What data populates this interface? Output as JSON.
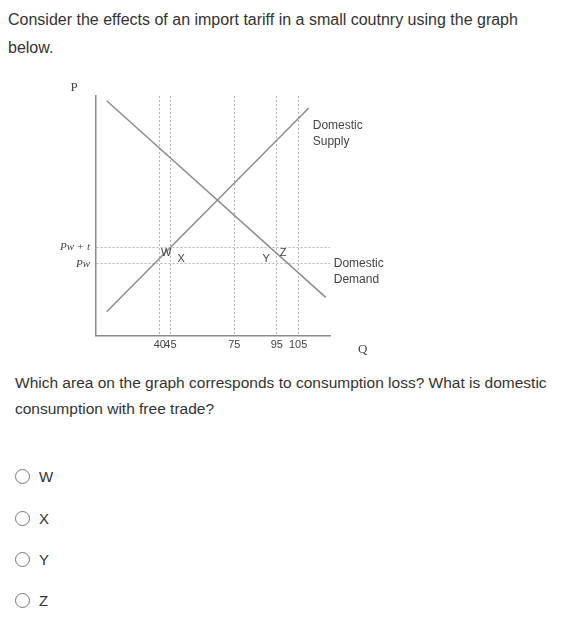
{
  "question": {
    "intro": "Consider the effects of an import tariff in a small coutnry using the graph below.",
    "prompt": "Which area on the graph corresponds to consumption loss? What is domestic consumption with free trade?",
    "options": [
      "W",
      "X",
      "Y",
      "Z"
    ]
  },
  "chart_data": {
    "type": "line",
    "x_label": "Q",
    "y_label": "P",
    "series": [
      {
        "name": "Domestic Supply",
        "color": "#8c8c8c",
        "x": [
          15,
          110
        ],
        "values": [
          1,
          9.5
        ]
      },
      {
        "name": "Domestic Demand",
        "color": "#8c8c8c",
        "x": [
          15,
          118
        ],
        "values": [
          9.8,
          1.6
        ]
      }
    ],
    "xlim": [
      10,
      120
    ],
    "xticks": [
      40,
      45,
      75,
      95,
      105
    ],
    "ylim": [
      0,
      10
    ],
    "yticks": [
      {
        "value": 3,
        "label": "Pw"
      },
      {
        "value": 3.7,
        "label": "Pw + t"
      }
    ],
    "grid": true,
    "annotations": [
      {
        "text": "W",
        "x": 43,
        "y": 3.45
      },
      {
        "text": "X",
        "x": 50,
        "y": 3.2
      },
      {
        "text": "Y",
        "x": 90,
        "y": 3.2
      },
      {
        "text": "Z",
        "x": 98,
        "y": 3.45
      }
    ]
  }
}
